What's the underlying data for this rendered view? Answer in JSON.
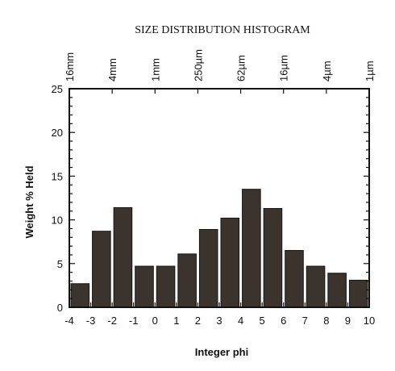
{
  "chart_data": {
    "type": "bar",
    "title": "SIZE DISTRIBUTION HISTOGRAM",
    "xlabel": "Integer phi",
    "ylabel": "Weight % Held",
    "ylim": [
      0,
      25
    ],
    "xlim": [
      -4,
      10
    ],
    "y_ticks": [
      "0",
      "5",
      "10",
      "15",
      "20",
      "25"
    ],
    "x_ticks": [
      "-4",
      "-3",
      "-2",
      "-1",
      "0",
      "1",
      "2",
      "3",
      "4",
      "5",
      "6",
      "7",
      "8",
      "9",
      "10"
    ],
    "top_axis_ticks": [
      {
        "label": "16mm",
        "at_phi": -4
      },
      {
        "label": "4mm",
        "at_phi": -2
      },
      {
        "label": "1mm",
        "at_phi": 0
      },
      {
        "label": "250µm",
        "at_phi": 2
      },
      {
        "label": "62µm",
        "at_phi": 4
      },
      {
        "label": "16µm",
        "at_phi": 6
      },
      {
        "label": "4µm",
        "at_phi": 8
      },
      {
        "label": "1µm",
        "at_phi": 10
      }
    ],
    "bins": [
      {
        "from": -4,
        "to": -3,
        "value": 2.7
      },
      {
        "from": -3,
        "to": -2,
        "value": 8.7
      },
      {
        "from": -2,
        "to": -1,
        "value": 11.4
      },
      {
        "from": -1,
        "to": 0,
        "value": 4.7
      },
      {
        "from": 0,
        "to": 1,
        "value": 4.7
      },
      {
        "from": 1,
        "to": 2,
        "value": 6.1
      },
      {
        "from": 2,
        "to": 3,
        "value": 8.9
      },
      {
        "from": 3,
        "to": 4,
        "value": 10.2
      },
      {
        "from": 4,
        "to": 5,
        "value": 13.5
      },
      {
        "from": 5,
        "to": 6,
        "value": 11.3
      },
      {
        "from": 6,
        "to": 7,
        "value": 6.5
      },
      {
        "from": 7,
        "to": 8,
        "value": 4.7
      },
      {
        "from": 8,
        "to": 9,
        "value": 3.9
      },
      {
        "from": 9,
        "to": 10,
        "value": 3.1
      }
    ],
    "grid": false,
    "colors": {
      "bar": "#3a332e",
      "axis": "#111111"
    }
  }
}
